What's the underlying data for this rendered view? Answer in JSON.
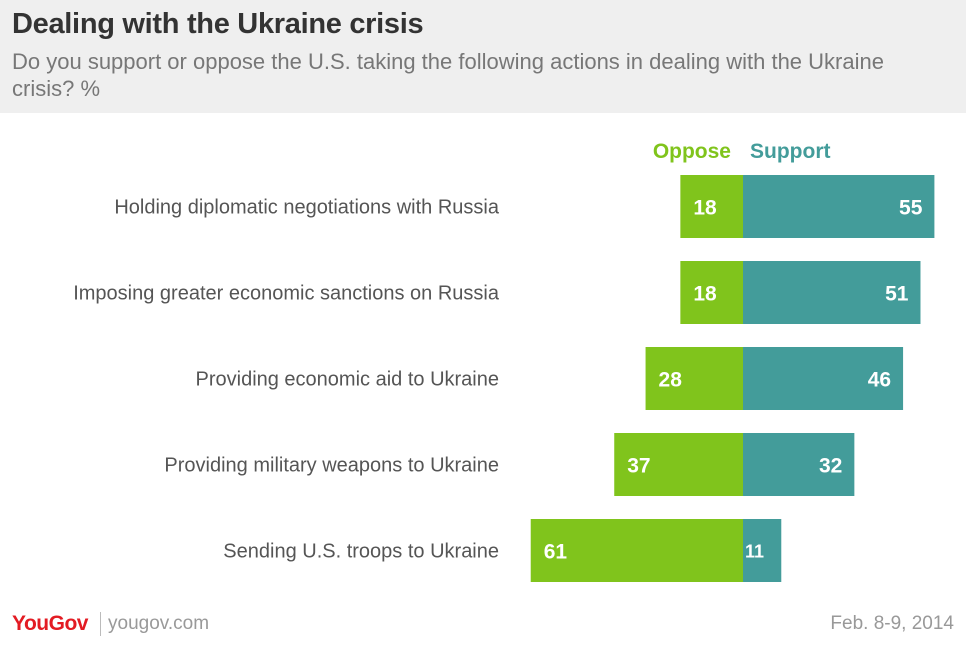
{
  "header": {
    "title": "Dealing with the Ukraine crisis",
    "subtitle": "Do you support or oppose the U.S. taking the following actions in dealing with the Ukraine crisis? %"
  },
  "colors": {
    "oppose": "#80c41c",
    "support": "#439c9a",
    "brand": "#e31b23"
  },
  "chart_data": {
    "type": "bar",
    "orientation": "horizontal-diverging",
    "categories": [
      "Holding diplomatic negotiations with Russia",
      "Imposing greater economic sanctions on Russia",
      "Providing economic aid to Ukraine",
      "Providing military weapons to Ukraine",
      "Sending U.S. troops to Ukraine"
    ],
    "series": [
      {
        "name": "Oppose",
        "values": [
          18,
          18,
          28,
          37,
          61
        ]
      },
      {
        "name": "Support",
        "values": [
          55,
          51,
          46,
          32,
          11
        ]
      }
    ],
    "unit": "%",
    "legend_position": "top"
  },
  "footer": {
    "logo": "YouGov",
    "url": "yougov.com",
    "date": "Feb. 8-9, 2014"
  }
}
